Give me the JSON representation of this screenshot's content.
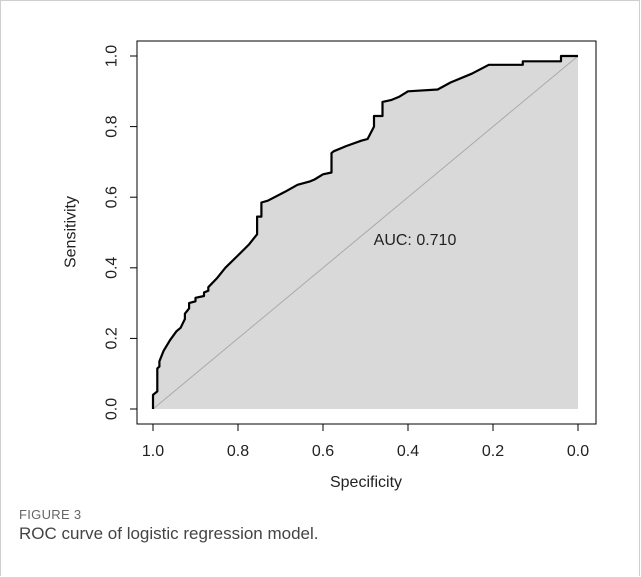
{
  "figure": {
    "label": "FIGURE 3",
    "caption": "ROC curve of logistic regression model."
  },
  "chart_data": {
    "type": "area",
    "xlabel": "Specificity",
    "ylabel": "Sensitivity",
    "xlim": [
      1.0,
      0.0
    ],
    "ylim": [
      0.0,
      1.0
    ],
    "x_ticks": [
      "1.0",
      "0.8",
      "0.6",
      "0.4",
      "0.2",
      "0.0"
    ],
    "y_ticks": [
      "0.0",
      "0.2",
      "0.4",
      "0.6",
      "0.8",
      "1.0"
    ],
    "annotation": "AUC: 0.710",
    "grid": false,
    "colors": {
      "fill": "#d9d9d9",
      "curve": "#000000",
      "diagonal": "#aaaaaa"
    },
    "reference_line": {
      "specificity": [
        1.0,
        0.0
      ],
      "sensitivity": [
        0.0,
        1.0
      ]
    },
    "series": [
      {
        "specificity": [
          1.0,
          1.0,
          0.99,
          0.99,
          0.985,
          0.985,
          0.975,
          0.96,
          0.945,
          0.935,
          0.925,
          0.925,
          0.915,
          0.915,
          0.9,
          0.9,
          0.88,
          0.88,
          0.87,
          0.87,
          0.85,
          0.83,
          0.8,
          0.775,
          0.755,
          0.755,
          0.745,
          0.745,
          0.73,
          0.69,
          0.66,
          0.63,
          0.62,
          0.6,
          0.58,
          0.58,
          0.575,
          0.545,
          0.51,
          0.495,
          0.48,
          0.48,
          0.46,
          0.46,
          0.44,
          0.42,
          0.4,
          0.33,
          0.3,
          0.25,
          0.21,
          0.13,
          0.13,
          0.04,
          0.04,
          0.0
        ],
        "sensitivity": [
          0.0,
          0.04,
          0.05,
          0.115,
          0.12,
          0.135,
          0.165,
          0.195,
          0.22,
          0.23,
          0.255,
          0.27,
          0.285,
          0.3,
          0.305,
          0.315,
          0.32,
          0.33,
          0.335,
          0.345,
          0.37,
          0.4,
          0.435,
          0.465,
          0.495,
          0.545,
          0.545,
          0.585,
          0.59,
          0.615,
          0.635,
          0.645,
          0.65,
          0.665,
          0.67,
          0.725,
          0.73,
          0.745,
          0.76,
          0.765,
          0.8,
          0.83,
          0.83,
          0.87,
          0.875,
          0.885,
          0.9,
          0.905,
          0.925,
          0.95,
          0.975,
          0.975,
          0.985,
          0.985,
          1.0,
          1.0
        ]
      }
    ]
  }
}
